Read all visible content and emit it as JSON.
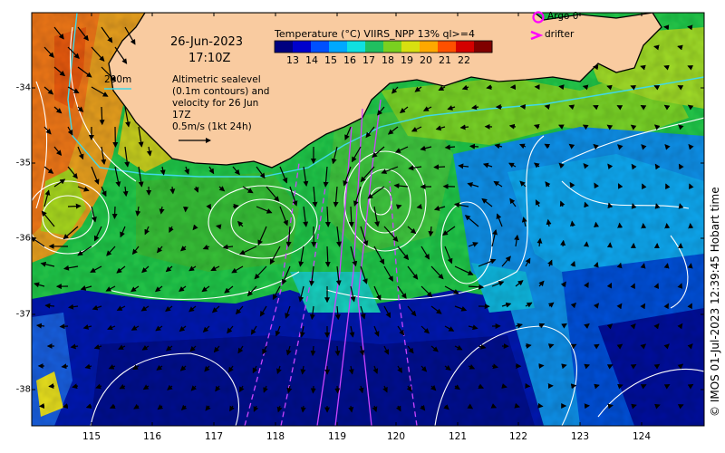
{
  "map": {
    "date": "26-Jun-2023",
    "time": "17:10Z",
    "colorbar_title": "Temperature (°C) VIIRS_NPP 13% ql>=4",
    "colorbar_ticks": [
      "13",
      "14",
      "15",
      "16",
      "17",
      "18",
      "19",
      "20",
      "21",
      "22"
    ],
    "colorbar_colors": [
      "#000080",
      "#0000cd",
      "#0050ff",
      "#00a8ff",
      "#10e0e0",
      "#20c060",
      "#7ad020",
      "#d8e010",
      "#ffa800",
      "#ff5000",
      "#d40000",
      "#800000"
    ],
    "isobath_label": "200m",
    "info_text": "Altimetric sealevel (0.1m contours) and velocity for 26 Jun 17Z",
    "scale_text": "0.5m/s (1kt 24h)",
    "legend": {
      "argo": "Argo 0",
      "drifter": "drifter"
    },
    "credit": "© IMOS 01-Jul-2023 12:39:45 Hobart time",
    "lat_ticks": [
      "-34",
      "-35",
      "-36",
      "-37",
      "-38"
    ],
    "lon_ticks": [
      "115",
      "116",
      "117",
      "118",
      "119",
      "120",
      "121",
      "122",
      "123",
      "124"
    ],
    "colors": {
      "land": "#f9cba0",
      "coast": "#000000",
      "isobath": "#40d8e8",
      "contour": "#ffffff",
      "argo": "#ff00ff",
      "drifter_track": "#cc44ff"
    }
  }
}
